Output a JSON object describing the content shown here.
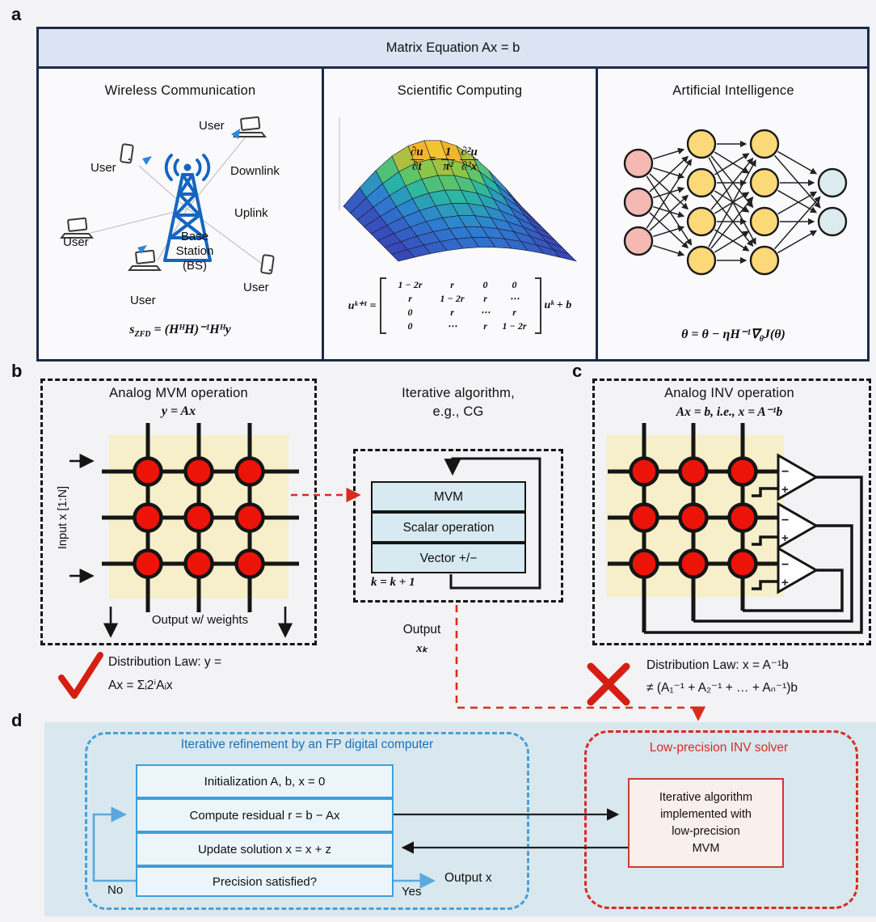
{
  "colors": {
    "accent_blue": "#1565c0",
    "wire_black": "#151515",
    "cell_red": "#ec1408",
    "beige": "#f6efc9",
    "panel_border": "#1c2b4a",
    "header_bg": "#dce3f3",
    "lightblue_box": "#d7e9f1",
    "d_bg": "#d9e8ef",
    "d_blue": "#4a9fd8",
    "d_blue_text": "#1a6fb5",
    "red": "#d92c20"
  },
  "panel_a": {
    "label": "a",
    "header": "Matrix Equation Ax = b",
    "wireless": {
      "title": "Wireless Communication",
      "users": [
        "User",
        "User",
        "User",
        "User",
        "User"
      ],
      "downlink": "Downlink",
      "uplink": "Uplink",
      "base_station": [
        "Base",
        "Station",
        "(BS)"
      ],
      "formula": {
        "lhs": "s",
        "sub": "ZFD",
        "rhs": " = (HᴴH)⁻¹Hᴴy"
      }
    },
    "scientific": {
      "title": "Scientific Computing",
      "pde": {
        "n1": "∂u",
        "d1": "∂t",
        "eq": "=",
        "n2": "1",
        "d2": "π²",
        "n3": "∂²u",
        "d3": "∂²x"
      },
      "matrix_eq": {
        "lhs": "uᵏ⁺¹ =",
        "rows": [
          [
            "1 − 2r",
            "r",
            "0",
            "0"
          ],
          [
            "r",
            "1 − 2r",
            "r",
            "⋯"
          ],
          [
            "0",
            "r",
            "⋯",
            "r"
          ],
          [
            "0",
            "⋯",
            "r",
            "1 − 2r"
          ]
        ],
        "rhs": "uᵏ + b"
      }
    },
    "ai": {
      "title": "Artificial Intelligence",
      "layers": [
        3,
        4,
        4,
        2
      ],
      "formula": {
        "pre": "θ = θ − ηH⁻¹∇",
        "sub": "θ",
        "post": "J(θ)"
      }
    }
  },
  "panel_b": {
    "label": "b",
    "title1": "Analog MVM operation",
    "title2": "y = Ax",
    "input_label": "Input x [1:N]",
    "output_label": "Output w/ weights",
    "check": {
      "line1": "Distribution Law: y =",
      "line2": "Ax = Σᵢ2ⁱAᵢx"
    }
  },
  "algorithm": {
    "title1": "Iterative algorithm,",
    "title2": "e.g., CG",
    "steps": [
      "MVM",
      "Scalar operation",
      "Vector +/−"
    ],
    "counter": "k = k + 1",
    "output_line1": "Output",
    "output_line2": "xₖ"
  },
  "panel_c": {
    "label": "c",
    "title1": "Analog INV operation",
    "title2": "Ax = b, i.e., x = A⁻¹b",
    "opamp": {
      "minus": "−",
      "plus": "+"
    },
    "cross": {
      "line1": "Distribution Law: x = A⁻¹b",
      "line2": "≠ (A₁⁻¹ + A₂⁻¹ + … + Aₙ⁻¹)b"
    }
  },
  "panel_d": {
    "label": "d",
    "left": {
      "title": "Iterative refinement by an FP digital computer",
      "steps": [
        "Initialization A, b, x = 0",
        "Compute residual r = b − Ax",
        "Update solution x = x + z",
        "Precision satisfied?"
      ],
      "no_label": "No",
      "yes_label": "Yes",
      "output_label": "Output x"
    },
    "right": {
      "title": "Low-precision INV solver",
      "box_lines": [
        "Iterative algorithm",
        "implemented with",
        "low-precision",
        "MVM"
      ]
    }
  }
}
